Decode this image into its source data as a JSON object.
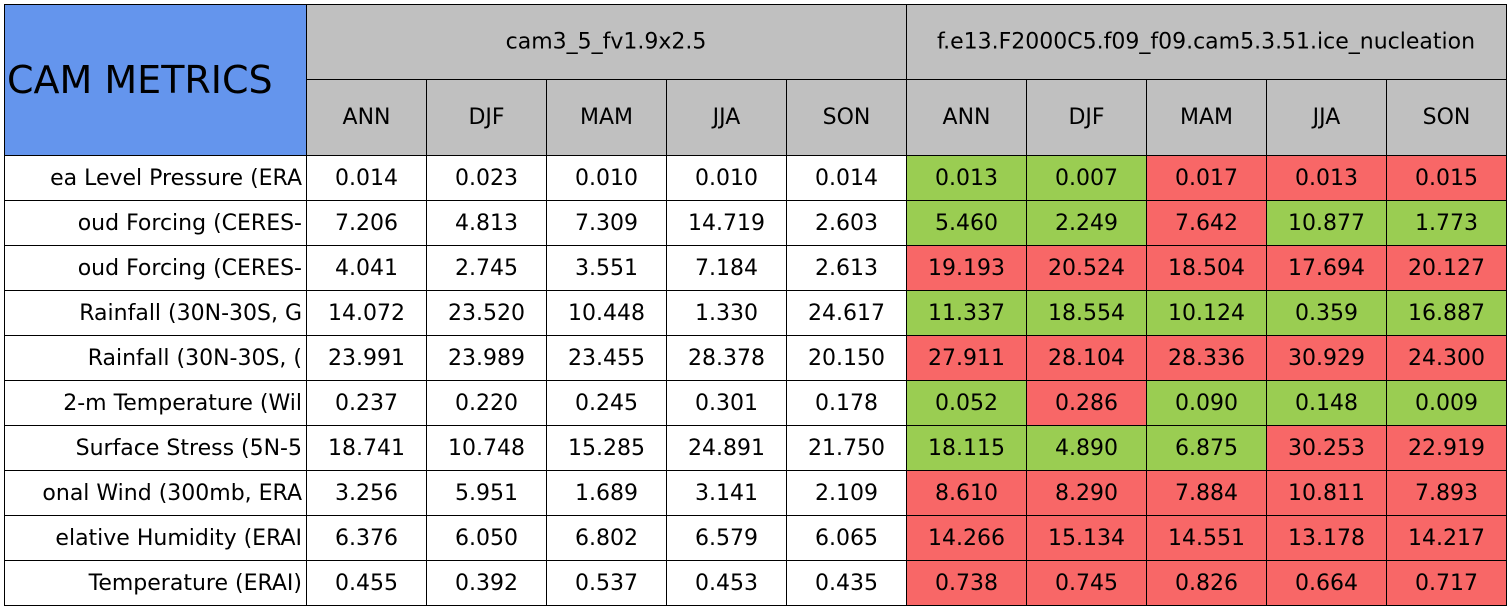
{
  "header": {
    "title": "CAM METRICS",
    "groups": [
      "cam3_5_fv1.9x2.5",
      "f.e13.F2000C5.f09_f09.cam5.3.51.ice_nucleation"
    ],
    "seasons": [
      "ANN",
      "DJF",
      "MAM",
      "JJA",
      "SON",
      "ANN",
      "DJF",
      "MAM",
      "JJA",
      "SON"
    ]
  },
  "rows": [
    {
      "label": "ea Level Pressure (ERA",
      "values": [
        "0.014",
        "0.023",
        "0.010",
        "0.010",
        "0.014",
        "0.013",
        "0.007",
        "0.017",
        "0.013",
        "0.015"
      ],
      "colors": [
        "#ffffff",
        "#ffffff",
        "#ffffff",
        "#ffffff",
        "#ffffff",
        "#9acd52",
        "#9acd52",
        "#f86767",
        "#f86767",
        "#f86767"
      ]
    },
    {
      "label": "oud Forcing (CERES-",
      "values": [
        "7.206",
        "4.813",
        "7.309",
        "14.719",
        "2.603",
        "5.460",
        "2.249",
        "7.642",
        "10.877",
        "1.773"
      ],
      "colors": [
        "#ffffff",
        "#ffffff",
        "#ffffff",
        "#ffffff",
        "#ffffff",
        "#9acd52",
        "#9acd52",
        "#f86767",
        "#9acd52",
        "#9acd52"
      ]
    },
    {
      "label": "oud Forcing (CERES-",
      "values": [
        "4.041",
        "2.745",
        "3.551",
        "7.184",
        "2.613",
        "19.193",
        "20.524",
        "18.504",
        "17.694",
        "20.127"
      ],
      "colors": [
        "#ffffff",
        "#ffffff",
        "#ffffff",
        "#ffffff",
        "#ffffff",
        "#f86767",
        "#f86767",
        "#f86767",
        "#f86767",
        "#f86767"
      ]
    },
    {
      "label": "Rainfall (30N-30S, G",
      "values": [
        "14.072",
        "23.520",
        "10.448",
        "1.330",
        "24.617",
        "11.337",
        "18.554",
        "10.124",
        "0.359",
        "16.887"
      ],
      "colors": [
        "#ffffff",
        "#ffffff",
        "#ffffff",
        "#ffffff",
        "#ffffff",
        "#9acd52",
        "#9acd52",
        "#9acd52",
        "#9acd52",
        "#9acd52"
      ]
    },
    {
      "label": "Rainfall (30N-30S, (",
      "values": [
        "23.991",
        "23.989",
        "23.455",
        "28.378",
        "20.150",
        "27.911",
        "28.104",
        "28.336",
        "30.929",
        "24.300"
      ],
      "colors": [
        "#ffffff",
        "#ffffff",
        "#ffffff",
        "#ffffff",
        "#ffffff",
        "#f86767",
        "#f86767",
        "#f86767",
        "#f86767",
        "#f86767"
      ]
    },
    {
      "label": "2-m Temperature (Wil",
      "values": [
        "0.237",
        "0.220",
        "0.245",
        "0.301",
        "0.178",
        "0.052",
        "0.286",
        "0.090",
        "0.148",
        "0.009"
      ],
      "colors": [
        "#ffffff",
        "#ffffff",
        "#ffffff",
        "#ffffff",
        "#ffffff",
        "#9acd52",
        "#f86767",
        "#9acd52",
        "#9acd52",
        "#9acd52"
      ]
    },
    {
      "label": "Surface Stress (5N-5",
      "values": [
        "18.741",
        "10.748",
        "15.285",
        "24.891",
        "21.750",
        "18.115",
        "4.890",
        "6.875",
        "30.253",
        "22.919"
      ],
      "colors": [
        "#ffffff",
        "#ffffff",
        "#ffffff",
        "#ffffff",
        "#ffffff",
        "#9acd52",
        "#9acd52",
        "#9acd52",
        "#f86767",
        "#f86767"
      ]
    },
    {
      "label": "onal Wind (300mb, ERA",
      "values": [
        "3.256",
        "5.951",
        "1.689",
        "3.141",
        "2.109",
        "8.610",
        "8.290",
        "7.884",
        "10.811",
        "7.893"
      ],
      "colors": [
        "#ffffff",
        "#ffffff",
        "#ffffff",
        "#ffffff",
        "#ffffff",
        "#f86767",
        "#f86767",
        "#f86767",
        "#f86767",
        "#f86767"
      ]
    },
    {
      "label": "elative Humidity (ERAI",
      "values": [
        "6.376",
        "6.050",
        "6.802",
        "6.579",
        "6.065",
        "14.266",
        "15.134",
        "14.551",
        "13.178",
        "14.217"
      ],
      "colors": [
        "#ffffff",
        "#ffffff",
        "#ffffff",
        "#ffffff",
        "#ffffff",
        "#f86767",
        "#f86767",
        "#f86767",
        "#f86767",
        "#f86767"
      ]
    },
    {
      "label": "Temperature (ERAI)",
      "values": [
        "0.455",
        "0.392",
        "0.537",
        "0.453",
        "0.435",
        "0.738",
        "0.745",
        "0.826",
        "0.664",
        "0.717"
      ],
      "colors": [
        "#ffffff",
        "#ffffff",
        "#ffffff",
        "#ffffff",
        "#ffffff",
        "#f86767",
        "#f86767",
        "#f86767",
        "#f86767",
        "#f86767"
      ]
    }
  ]
}
